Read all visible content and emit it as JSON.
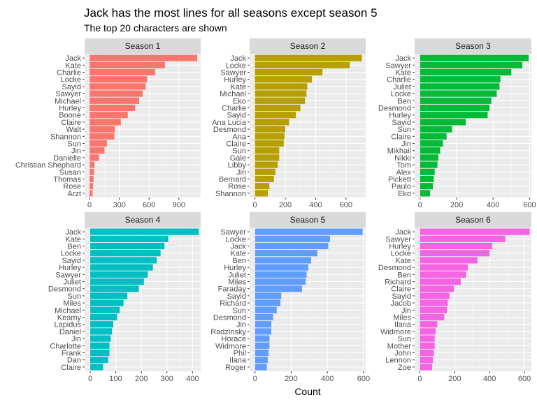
{
  "chart_data": {
    "type": "bar",
    "orientation": "horizontal",
    "title": "Jack has the most lines for all seasons except season 5",
    "subtitle": "The top 20 characters are shown",
    "xlabel": "Count",
    "ylabel": "",
    "grid": true,
    "legend": "none",
    "panels": [
      {
        "name": "Season 1",
        "color": "#F8766D",
        "xlim": [
          -50,
          1120
        ],
        "ticks": [
          0,
          300,
          600,
          900
        ],
        "categories": [
          "Jack",
          "Kate",
          "Charlie",
          "Locke",
          "Sayid",
          "Sawyer",
          "Michael",
          "Hurley",
          "Boone",
          "Claire",
          "Walt",
          "Shannon",
          "Sun",
          "Jin",
          "Danielle",
          "Christian Shephard",
          "Susan",
          "Thomas",
          "Rose",
          "Arzt"
        ],
        "values": [
          1085,
          760,
          660,
          580,
          565,
          535,
          500,
          460,
          385,
          315,
          255,
          250,
          175,
          150,
          95,
          50,
          45,
          40,
          35,
          30
        ]
      },
      {
        "name": "Season 2",
        "color": "#B79F00",
        "xlim": [
          -35,
          730
        ],
        "ticks": [
          0,
          200,
          400,
          600
        ],
        "categories": [
          "Jack",
          "Locke",
          "Sawyer",
          "Hurley",
          "Kate",
          "Michael",
          "Eko",
          "Charlie",
          "Sayid",
          "Ana Lucia",
          "Desmond",
          "Ana",
          "Claire",
          "Sun",
          "Gale",
          "Libby",
          "Jin",
          "Bernard",
          "Rose",
          "Shannon"
        ],
        "values": [
          705,
          625,
          445,
          375,
          345,
          340,
          330,
          300,
          270,
          225,
          200,
          195,
          190,
          160,
          160,
          150,
          135,
          125,
          95,
          85
        ]
      },
      {
        "name": "Season 3",
        "color": "#00BA38",
        "xlim": [
          -30,
          610
        ],
        "ticks": [
          0,
          200,
          400,
          600
        ],
        "categories": [
          "Jack",
          "Sawyer",
          "Kate",
          "Charlie",
          "Juliet",
          "Locke",
          "Ben",
          "Desmond",
          "Hurley",
          "Sayid",
          "Sun",
          "Claire",
          "Jin",
          "Mikhail",
          "Nikki",
          "Tom",
          "Alex",
          "Pickett",
          "Paulo",
          "Eko"
        ],
        "values": [
          595,
          560,
          500,
          440,
          435,
          420,
          390,
          380,
          370,
          250,
          175,
          145,
          125,
          110,
          100,
          95,
          80,
          75,
          70,
          55
        ]
      },
      {
        "name": "Season 4",
        "color": "#00BFC4",
        "xlim": [
          -22,
          432
        ],
        "ticks": [
          0,
          100,
          200,
          300,
          400
        ],
        "categories": [
          "Jack",
          "Kate",
          "Ben",
          "Locke",
          "Sayid",
          "Hurley",
          "Sawyer",
          "Juliet",
          "Desmond",
          "Sun",
          "Miles",
          "Michael",
          "Keamy",
          "Lapidus",
          "Daniel",
          "Jin",
          "Charlotte",
          "Frank",
          "Dan",
          "Claire"
        ],
        "values": [
          425,
          305,
          290,
          275,
          260,
          245,
          225,
          210,
          190,
          145,
          130,
          115,
          105,
          90,
          85,
          80,
          75,
          75,
          70,
          50
        ]
      },
      {
        "name": "Season 5",
        "color": "#619CFF",
        "xlim": [
          -30,
          612
        ],
        "ticks": [
          0,
          200,
          400,
          600
        ],
        "categories": [
          "Sawyer",
          "Locke",
          "Jack",
          "Kate",
          "Ben",
          "Hurley",
          "Juliet",
          "Miles",
          "Faraday",
          "Sayid",
          "Richard",
          "Sun",
          "Desmond",
          "Jin",
          "Radzinsky",
          "Horace",
          "Widmore",
          "Phil",
          "Ilana",
          "Roger"
        ],
        "values": [
          595,
          415,
          405,
          345,
          310,
          295,
          285,
          280,
          260,
          145,
          140,
          120,
          100,
          90,
          90,
          80,
          80,
          75,
          70,
          65
        ]
      },
      {
        "name": "Season 6",
        "color": "#F564E3",
        "xlim": [
          -30,
          640
        ],
        "ticks": [
          0,
          200,
          400,
          600
        ],
        "categories": [
          "Jack",
          "Sawyer",
          "Hurley",
          "Locke",
          "Kate",
          "Desmond",
          "Ben",
          "Richard",
          "Claire",
          "Sayid",
          "Jacob",
          "Jin",
          "Miles",
          "Ilana",
          "Widmore",
          "Sun",
          "Mother",
          "John",
          "Lennon",
          "Zoe"
        ],
        "values": [
          630,
          490,
          415,
          400,
          330,
          275,
          265,
          235,
          195,
          170,
          160,
          155,
          140,
          100,
          90,
          85,
          85,
          80,
          75,
          70
        ]
      }
    ]
  }
}
